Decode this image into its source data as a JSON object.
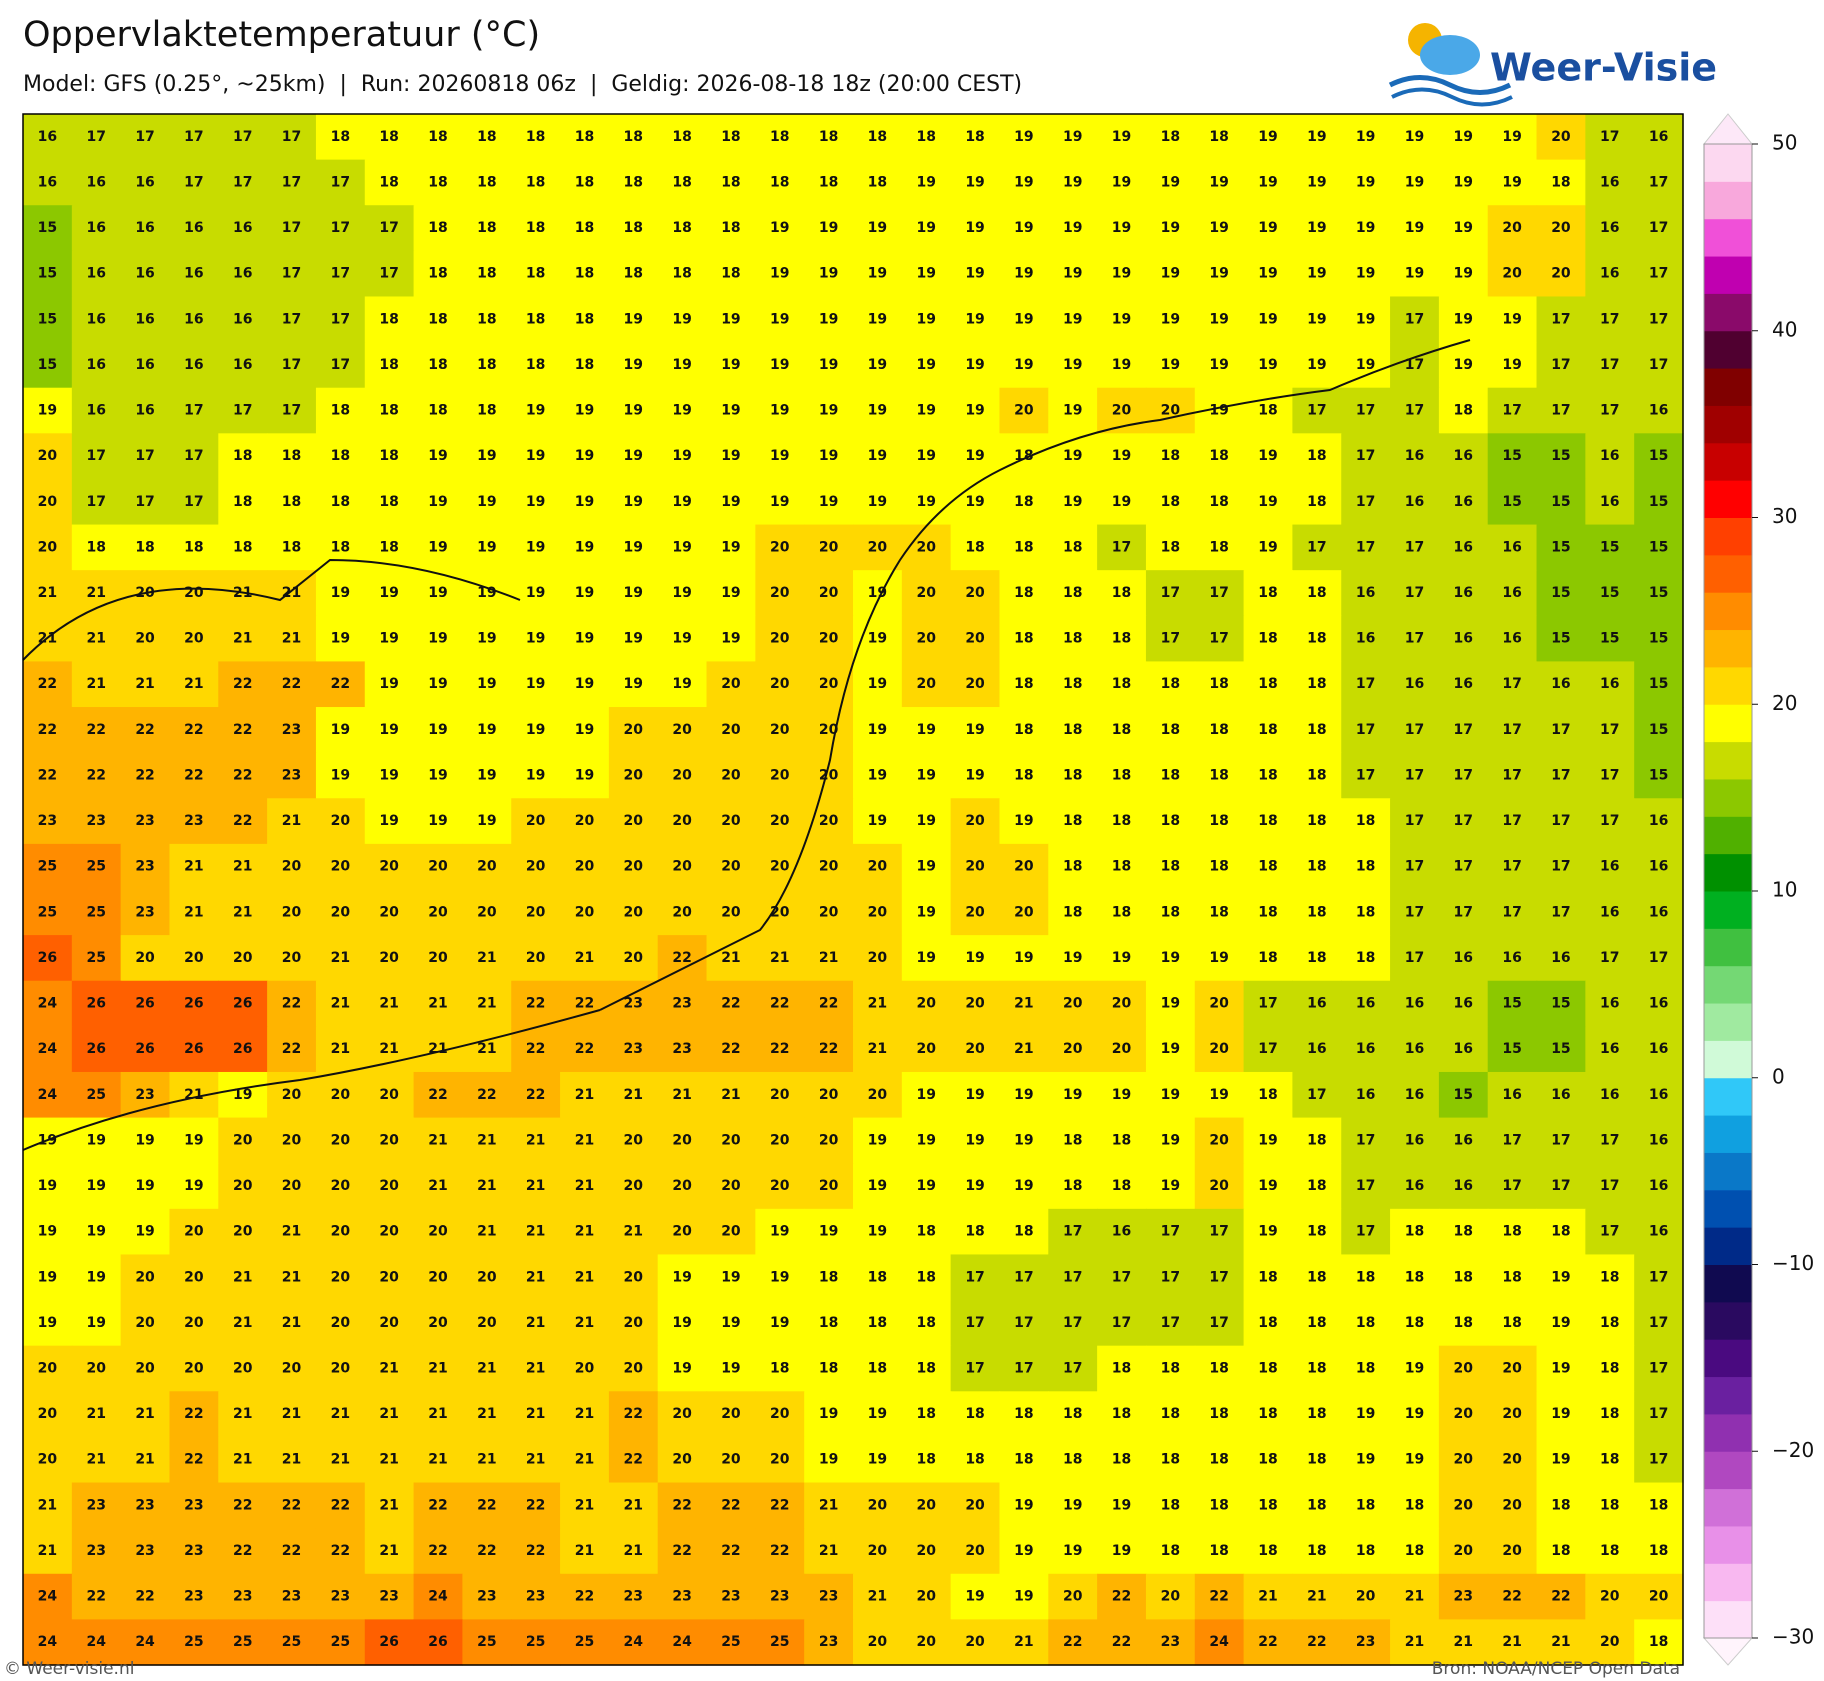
{
  "header": {
    "title": "Oppervlaktetemperatuur (°C)",
    "subtitle": "Model: GFS (0.25°, ~25km)  |  Run: 20260818 06z  |  Geldig: 2026-08-18 18z (20:00 CEST)"
  },
  "logo": {
    "text": "Weer-Visie"
  },
  "map": {
    "grid": [
      [
        16,
        17,
        17,
        17,
        17,
        17,
        18,
        18,
        18,
        18,
        18,
        18,
        18,
        18,
        18,
        18,
        18,
        18,
        18,
        18,
        19,
        19,
        19,
        18,
        18,
        19,
        19,
        19,
        19,
        19,
        19,
        20,
        17,
        16
      ],
      [
        16,
        16,
        16,
        17,
        17,
        17,
        17,
        18,
        18,
        18,
        18,
        18,
        18,
        18,
        18,
        18,
        18,
        18,
        19,
        19,
        19,
        19,
        19,
        19,
        19,
        19,
        19,
        19,
        19,
        19,
        19,
        18,
        16,
        17
      ],
      [
        15,
        16,
        16,
        16,
        16,
        17,
        17,
        17,
        18,
        18,
        18,
        18,
        18,
        18,
        18,
        19,
        19,
        19,
        19,
        19,
        19,
        19,
        19,
        19,
        19,
        19,
        19,
        19,
        19,
        19,
        20,
        20,
        16,
        17
      ],
      [
        15,
        16,
        16,
        16,
        16,
        17,
        17,
        17,
        18,
        18,
        18,
        18,
        18,
        18,
        18,
        19,
        19,
        19,
        19,
        19,
        19,
        19,
        19,
        19,
        19,
        19,
        19,
        19,
        19,
        19,
        20,
        20,
        16,
        17
      ],
      [
        15,
        16,
        16,
        16,
        16,
        17,
        17,
        18,
        18,
        18,
        18,
        18,
        19,
        19,
        19,
        19,
        19,
        19,
        19,
        19,
        19,
        19,
        19,
        19,
        19,
        19,
        19,
        19,
        17,
        19,
        19,
        17,
        17,
        17
      ],
      [
        15,
        16,
        16,
        16,
        16,
        17,
        17,
        18,
        18,
        18,
        18,
        18,
        19,
        19,
        19,
        19,
        19,
        19,
        19,
        19,
        19,
        19,
        19,
        19,
        19,
        19,
        19,
        19,
        17,
        19,
        19,
        17,
        17,
        17
      ],
      [
        19,
        16,
        16,
        17,
        17,
        17,
        18,
        18,
        18,
        18,
        19,
        19,
        19,
        19,
        19,
        19,
        19,
        19,
        19,
        19,
        20,
        19,
        20,
        20,
        19,
        18,
        17,
        17,
        17,
        18,
        17,
        17,
        17,
        16
      ],
      [
        20,
        17,
        17,
        17,
        18,
        18,
        18,
        18,
        19,
        19,
        19,
        19,
        19,
        19,
        19,
        19,
        19,
        19,
        19,
        19,
        18,
        19,
        19,
        18,
        18,
        19,
        18,
        17,
        16,
        16,
        15,
        15,
        16,
        15
      ],
      [
        20,
        17,
        17,
        17,
        18,
        18,
        18,
        18,
        19,
        19,
        19,
        19,
        19,
        19,
        19,
        19,
        19,
        19,
        19,
        19,
        18,
        19,
        19,
        18,
        18,
        19,
        18,
        17,
        16,
        16,
        15,
        15,
        16,
        15
      ],
      [
        20,
        18,
        18,
        18,
        18,
        18,
        18,
        18,
        19,
        19,
        19,
        19,
        19,
        19,
        19,
        20,
        20,
        20,
        20,
        18,
        18,
        18,
        17,
        18,
        18,
        19,
        17,
        17,
        17,
        16,
        16,
        15,
        15,
        15
      ],
      [
        21,
        21,
        20,
        20,
        21,
        21,
        19,
        19,
        19,
        19,
        19,
        19,
        19,
        19,
        19,
        20,
        20,
        19,
        20,
        20,
        18,
        18,
        18,
        17,
        17,
        18,
        18,
        16,
        17,
        16,
        16,
        15,
        15,
        15
      ],
      [
        21,
        21,
        20,
        20,
        21,
        21,
        19,
        19,
        19,
        19,
        19,
        19,
        19,
        19,
        19,
        20,
        20,
        19,
        20,
        20,
        18,
        18,
        18,
        17,
        17,
        18,
        18,
        16,
        17,
        16,
        16,
        15,
        15,
        15
      ],
      [
        22,
        21,
        21,
        21,
        22,
        22,
        22,
        19,
        19,
        19,
        19,
        19,
        19,
        19,
        20,
        20,
        20,
        19,
        20,
        20,
        18,
        18,
        18,
        18,
        18,
        18,
        18,
        17,
        16,
        16,
        17,
        16,
        16,
        15
      ],
      [
        22,
        22,
        22,
        22,
        22,
        23,
        19,
        19,
        19,
        19,
        19,
        19,
        20,
        20,
        20,
        20,
        20,
        19,
        19,
        19,
        18,
        18,
        18,
        18,
        18,
        18,
        18,
        17,
        17,
        17,
        17,
        17,
        17,
        15
      ],
      [
        22,
        22,
        22,
        22,
        22,
        23,
        19,
        19,
        19,
        19,
        19,
        19,
        20,
        20,
        20,
        20,
        20,
        19,
        19,
        19,
        18,
        18,
        18,
        18,
        18,
        18,
        18,
        17,
        17,
        17,
        17,
        17,
        17,
        15
      ],
      [
        23,
        23,
        23,
        23,
        22,
        21,
        20,
        19,
        19,
        19,
        20,
        20,
        20,
        20,
        20,
        20,
        20,
        19,
        19,
        20,
        19,
        18,
        18,
        18,
        18,
        18,
        18,
        18,
        17,
        17,
        17,
        17,
        17,
        16
      ],
      [
        25,
        25,
        23,
        21,
        21,
        20,
        20,
        20,
        20,
        20,
        20,
        20,
        20,
        20,
        20,
        20,
        20,
        20,
        19,
        20,
        20,
        18,
        18,
        18,
        18,
        18,
        18,
        18,
        17,
        17,
        17,
        17,
        16,
        16
      ],
      [
        25,
        25,
        23,
        21,
        21,
        20,
        20,
        20,
        20,
        20,
        20,
        20,
        20,
        20,
        20,
        20,
        20,
        20,
        19,
        20,
        20,
        18,
        18,
        18,
        18,
        18,
        18,
        18,
        17,
        17,
        17,
        17,
        16,
        16
      ],
      [
        26,
        25,
        20,
        20,
        20,
        20,
        21,
        20,
        20,
        21,
        20,
        21,
        20,
        22,
        21,
        21,
        21,
        20,
        19,
        19,
        19,
        19,
        19,
        19,
        19,
        18,
        18,
        18,
        17,
        16,
        16,
        16,
        17,
        17
      ],
      [
        24,
        26,
        26,
        26,
        26,
        22,
        21,
        21,
        21,
        21,
        22,
        22,
        23,
        23,
        22,
        22,
        22,
        21,
        20,
        20,
        21,
        20,
        20,
        19,
        20,
        17,
        16,
        16,
        16,
        16,
        15,
        15,
        16,
        16
      ],
      [
        24,
        26,
        26,
        26,
        26,
        22,
        21,
        21,
        21,
        21,
        22,
        22,
        23,
        23,
        22,
        22,
        22,
        21,
        20,
        20,
        21,
        20,
        20,
        19,
        20,
        17,
        16,
        16,
        16,
        16,
        15,
        15,
        16,
        16
      ],
      [
        24,
        25,
        23,
        21,
        19,
        20,
        20,
        20,
        22,
        22,
        22,
        21,
        21,
        21,
        21,
        20,
        20,
        20,
        19,
        19,
        19,
        19,
        19,
        19,
        19,
        18,
        17,
        16,
        16,
        15,
        16,
        16,
        16,
        16
      ],
      [
        19,
        19,
        19,
        19,
        20,
        20,
        20,
        20,
        21,
        21,
        21,
        21,
        20,
        20,
        20,
        20,
        20,
        19,
        19,
        19,
        19,
        18,
        18,
        19,
        20,
        19,
        18,
        17,
        16,
        16,
        17,
        17,
        17,
        16
      ],
      [
        19,
        19,
        19,
        19,
        20,
        20,
        20,
        20,
        21,
        21,
        21,
        21,
        20,
        20,
        20,
        20,
        20,
        19,
        19,
        19,
        19,
        18,
        18,
        19,
        20,
        19,
        18,
        17,
        16,
        16,
        17,
        17,
        17,
        16
      ],
      [
        19,
        19,
        19,
        20,
        20,
        21,
        20,
        20,
        20,
        21,
        21,
        21,
        21,
        20,
        20,
        19,
        19,
        19,
        18,
        18,
        18,
        17,
        16,
        17,
        17,
        19,
        18,
        17,
        18,
        18,
        18,
        18,
        17,
        16
      ],
      [
        19,
        19,
        20,
        20,
        21,
        21,
        20,
        20,
        20,
        20,
        21,
        21,
        20,
        19,
        19,
        19,
        18,
        18,
        18,
        17,
        17,
        17,
        17,
        17,
        17,
        18,
        18,
        18,
        18,
        18,
        18,
        19,
        18,
        17
      ],
      [
        19,
        19,
        20,
        20,
        21,
        21,
        20,
        20,
        20,
        20,
        21,
        21,
        20,
        19,
        19,
        19,
        18,
        18,
        18,
        17,
        17,
        17,
        17,
        17,
        17,
        18,
        18,
        18,
        18,
        18,
        18,
        19,
        18,
        17
      ],
      [
        20,
        20,
        20,
        20,
        20,
        20,
        20,
        21,
        21,
        21,
        21,
        20,
        20,
        19,
        19,
        18,
        18,
        18,
        18,
        17,
        17,
        17,
        18,
        18,
        18,
        18,
        18,
        18,
        19,
        20,
        20,
        19,
        18,
        17
      ],
      [
        20,
        21,
        21,
        22,
        21,
        21,
        21,
        21,
        21,
        21,
        21,
        21,
        22,
        20,
        20,
        20,
        19,
        19,
        18,
        18,
        18,
        18,
        18,
        18,
        18,
        18,
        18,
        19,
        19,
        20,
        20,
        19,
        18,
        17
      ],
      [
        20,
        21,
        21,
        22,
        21,
        21,
        21,
        21,
        21,
        21,
        21,
        21,
        22,
        20,
        20,
        20,
        19,
        19,
        18,
        18,
        18,
        18,
        18,
        18,
        18,
        18,
        18,
        19,
        19,
        20,
        20,
        19,
        18,
        17
      ],
      [
        21,
        23,
        23,
        23,
        22,
        22,
        22,
        21,
        22,
        22,
        22,
        21,
        21,
        22,
        22,
        22,
        21,
        20,
        20,
        20,
        19,
        19,
        19,
        18,
        18,
        18,
        18,
        18,
        18,
        20,
        20,
        18,
        18,
        18
      ],
      [
        21,
        23,
        23,
        23,
        22,
        22,
        22,
        21,
        22,
        22,
        22,
        21,
        21,
        22,
        22,
        22,
        21,
        20,
        20,
        20,
        19,
        19,
        19,
        18,
        18,
        18,
        18,
        18,
        18,
        20,
        20,
        18,
        18,
        18
      ],
      [
        24,
        22,
        22,
        23,
        23,
        23,
        23,
        23,
        24,
        23,
        23,
        22,
        23,
        23,
        23,
        23,
        23,
        21,
        20,
        19,
        19,
        20,
        22,
        20,
        22,
        21,
        21,
        20,
        21,
        23,
        22,
        22,
        20,
        20
      ],
      [
        24,
        24,
        24,
        25,
        25,
        25,
        25,
        26,
        26,
        25,
        25,
        25,
        24,
        24,
        25,
        25,
        23,
        20,
        20,
        20,
        21,
        22,
        22,
        23,
        24,
        22,
        22,
        23,
        21,
        21,
        21,
        21,
        20,
        18
      ]
    ]
  },
  "colorbar": {
    "lim": [
      -30,
      50
    ],
    "colors": [
      "#fde0f8",
      "#f8b8f0",
      "#e890e8",
      "#d070d8",
      "#b048c0",
      "#9030b0",
      "#6a20a0",
      "#4a0a80",
      "#2a0a60",
      "#100a50",
      "#002a88",
      "#0050b0",
      "#0a78c8",
      "#10a0e0",
      "#30c8f8",
      "#d0fad8",
      "#a0eaa0",
      "#74d874",
      "#40c040",
      "#00b020",
      "#009000",
      "#50b000",
      "#8cc800",
      "#c8dc00",
      "#ffff00",
      "#ffd800",
      "#ffb400",
      "#ff8c00",
      "#ff6000",
      "#ff4000",
      "#ff0000",
      "#c80000",
      "#a00000",
      "#800000",
      "#500030",
      "#8a0a6a",
      "#c000b0",
      "#f050d8",
      "#f8a8dc",
      "#fcd8f0"
    ],
    "ticks": [
      50,
      40,
      30,
      20,
      10,
      0,
      {
        "value": -10,
        "label": "−10"
      },
      {
        "value": -20,
        "label": "−20"
      },
      {
        "value": -30,
        "label": "−30"
      }
    ]
  },
  "footer": {
    "left": "© Weer-visie.nl",
    "right": "Bron: NOAA/NCEP Open Data"
  }
}
